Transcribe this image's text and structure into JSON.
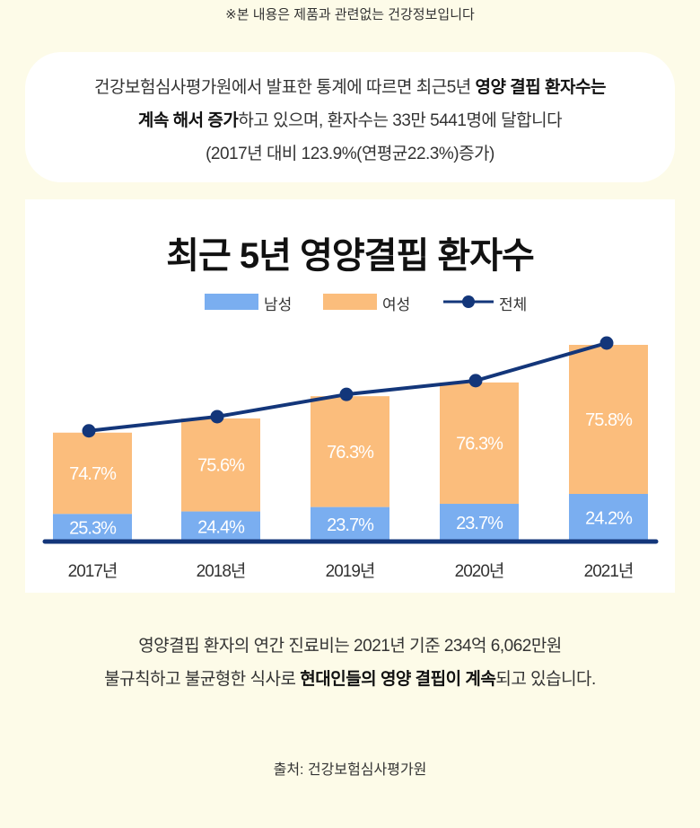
{
  "disclaimer": "※본 내용은 제품과 관련없는 건강정보입니다",
  "intro": {
    "lines": [
      [
        {
          "text": "건강보험심사평가원에서 발표한 통계에 따르면 최근5년 ",
          "bold": false
        },
        {
          "text": "영양 결핍 환자수는",
          "bold": true
        }
      ],
      [
        {
          "text": "계속 해서 증가",
          "bold": true
        },
        {
          "text": "하고 있으며, 환자수는 33만 5441명에 달합니다",
          "bold": false
        }
      ],
      [
        {
          "text": "(2017년 대비 123.9%(연평균22.3%)증가)",
          "bold": false
        }
      ]
    ]
  },
  "chart_data": {
    "type": "bar",
    "stacked": true,
    "title": "최근 5년 영양결핍 환자수",
    "categories": [
      "2017년",
      "2018년",
      "2019년",
      "2020년",
      "2021년"
    ],
    "series": [
      {
        "name": "남성",
        "type": "bar",
        "values_pct": [
          25.3,
          24.4,
          23.7,
          23.7,
          24.2
        ],
        "labels": [
          "25.3%",
          "24.4%",
          "23.7%",
          "23.7%",
          "24.2%"
        ]
      },
      {
        "name": "여성",
        "type": "bar",
        "values_pct": [
          74.7,
          75.6,
          76.3,
          76.3,
          75.8
        ],
        "labels": [
          "74.7%",
          "75.6%",
          "76.3%",
          "76.3%",
          "75.8%"
        ]
      },
      {
        "name": "전체",
        "type": "line",
        "values": [
          150000,
          180000,
          227000,
          256000,
          335441
        ]
      }
    ],
    "ylim": [
      -80000,
      340000
    ],
    "xlabel": "",
    "ylabel": "",
    "grid": false,
    "legend": "top-center",
    "colors": {
      "male": "#7aaef0",
      "female": "#fbbd7c",
      "total": "#13367a"
    }
  },
  "bottom": {
    "lines": [
      [
        {
          "text": "영양결핍 환자의 연간 진료비는 2021년 기준 234억 6,062만원",
          "bold": false
        }
      ],
      [
        {
          "text": "불규칙하고 불균형한 식사로 ",
          "bold": false
        },
        {
          "text": "현대인들의 영양 결핍이 계속",
          "bold": true
        },
        {
          "text": "되고 있습니다.",
          "bold": false
        }
      ]
    ]
  },
  "source": "출처: 건강보험심사평가원"
}
